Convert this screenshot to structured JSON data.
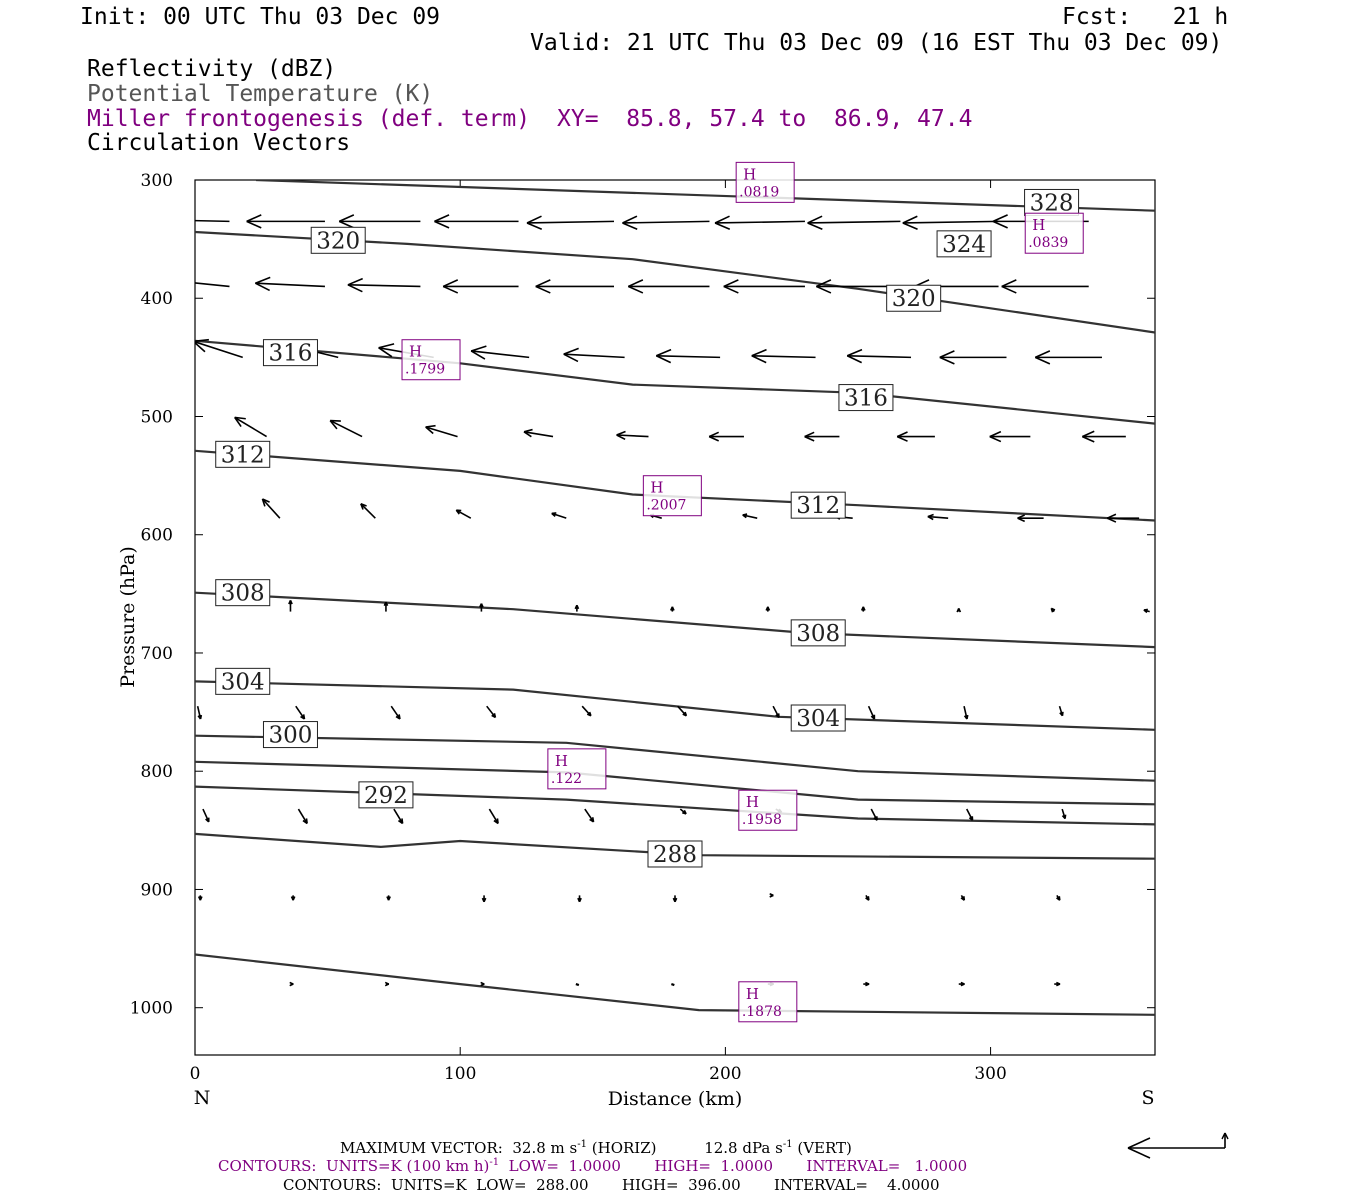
{
  "header": {
    "init": "Init: 00 UTC Thu 03 Dec 09",
    "fcst": "Fcst:   21 h",
    "valid": "Valid: 21 UTC Thu 03 Dec 09 (16 EST Thu 03 Dec 09)",
    "field1": "Reflectivity (dBZ)",
    "field2": "Potential Temperature (K)",
    "field3": "Miller frontogenesis (def. term)",
    "xy": "XY=  85.8, 57.4 to  86.9, 47.4",
    "field4": "Circulation Vectors"
  },
  "colors": {
    "frontogenesis": "#800080",
    "theta": "#333333",
    "vectors": "#000000"
  },
  "chart_data": {
    "type": "cross-section",
    "xlabel": "Distance (km)",
    "ylabel": "Pressure (hPa)",
    "xlim": [
      0,
      362
    ],
    "ylim": [
      300,
      1040
    ],
    "y_inverted": true,
    "xticks": [
      0,
      100,
      200,
      300
    ],
    "yticks": [
      300,
      400,
      500,
      600,
      700,
      800,
      900,
      1000
    ],
    "end_labels": {
      "left": "N",
      "right": "S"
    },
    "theta_contours": [
      {
        "level": "",
        "points": [
          [
            23,
            300
          ],
          [
            362,
            326
          ]
        ]
      },
      {
        "level": "",
        "points": [
          [
            0,
            344
          ],
          [
            80,
            354
          ],
          [
            165,
            367
          ],
          [
            250,
            392
          ],
          [
            362,
            429
          ]
        ]
      },
      {
        "level": "",
        "points": [
          [
            0,
            436
          ],
          [
            100,
            455
          ],
          [
            165,
            473
          ],
          [
            250,
            480
          ],
          [
            362,
            506
          ]
        ]
      },
      {
        "level": "",
        "points": [
          [
            0,
            529
          ],
          [
            100,
            546
          ],
          [
            165,
            566
          ],
          [
            250,
            575
          ],
          [
            362,
            588
          ]
        ]
      },
      {
        "level": "",
        "points": [
          [
            0,
            649
          ],
          [
            120,
            663
          ],
          [
            230,
            683
          ],
          [
            362,
            695
          ]
        ]
      },
      {
        "level": "",
        "points": [
          [
            0,
            724
          ],
          [
            120,
            731
          ],
          [
            220,
            754
          ],
          [
            362,
            765
          ]
        ]
      },
      {
        "level": "",
        "points": [
          [
            0,
            770
          ],
          [
            140,
            776
          ],
          [
            250,
            800
          ],
          [
            362,
            808
          ]
        ]
      },
      {
        "level": "",
        "points": [
          [
            0,
            792
          ],
          [
            140,
            801
          ],
          [
            250,
            824
          ],
          [
            362,
            828
          ]
        ]
      },
      {
        "level": "",
        "points": [
          [
            0,
            813
          ],
          [
            140,
            824
          ],
          [
            250,
            840
          ],
          [
            362,
            845
          ]
        ]
      },
      {
        "level": "",
        "points": [
          [
            0,
            853
          ],
          [
            70,
            864
          ],
          [
            100,
            859
          ],
          [
            190,
            871
          ],
          [
            362,
            874
          ]
        ]
      },
      {
        "level": "",
        "points": [
          [
            0,
            955
          ],
          [
            100,
            980
          ],
          [
            190,
            1002
          ],
          [
            362,
            1006
          ]
        ]
      }
    ],
    "theta_labels": [
      {
        "text": "328",
        "x": 323,
        "y": 319
      },
      {
        "text": "324",
        "x": 290,
        "y": 354
      },
      {
        "text": "320",
        "x": 54,
        "y": 351
      },
      {
        "text": "320",
        "x": 271,
        "y": 400
      },
      {
        "text": "316",
        "x": 36,
        "y": 446
      },
      {
        "text": "316",
        "x": 253,
        "y": 484
      },
      {
        "text": "312",
        "x": 18,
        "y": 532
      },
      {
        "text": "312",
        "x": 235,
        "y": 575
      },
      {
        "text": "308",
        "x": 18,
        "y": 649
      },
      {
        "text": "308",
        "x": 235,
        "y": 683
      },
      {
        "text": "304",
        "x": 18,
        "y": 724
      },
      {
        "text": "304",
        "x": 235,
        "y": 755
      },
      {
        "text": "300",
        "x": 36,
        "y": 769
      },
      {
        "text": "292",
        "x": 72,
        "y": 820
      },
      {
        "text": "288",
        "x": 181,
        "y": 870
      }
    ],
    "frontogenesis_maxima": [
      {
        "mark": "H",
        "value": ".0819",
        "x": 215,
        "y": 302
      },
      {
        "mark": "H",
        "value": ".0839",
        "x": 324,
        "y": 345
      },
      {
        "mark": "H",
        "value": ".1799",
        "x": 89,
        "y": 452
      },
      {
        "mark": "H",
        "value": ".2007",
        "x": 180,
        "y": 567
      },
      {
        "mark": "H",
        "value": ".122",
        "x": 144,
        "y": 798
      },
      {
        "mark": "H",
        "value": ".1958",
        "x": 216,
        "y": 833
      },
      {
        "mark": "H",
        "value": ".1878",
        "x": 216,
        "y": 995
      }
    ],
    "vectors": [
      {
        "p": 335,
        "x": [
          13,
          49,
          85,
          122,
          158,
          194,
          230,
          266,
          303,
          337
        ],
        "u": [
          -25,
          -27,
          -28,
          -29,
          -30,
          -30,
          -31,
          -32,
          -33,
          -33
        ],
        "w": [
          -1,
          0,
          0,
          0,
          1,
          1,
          1,
          1,
          1,
          0
        ]
      },
      {
        "p": 390,
        "x": [
          13,
          49,
          85,
          122,
          158,
          194,
          230,
          266,
          303,
          337
        ],
        "u": [
          -22,
          -24,
          -25,
          -26,
          -27,
          -28,
          -28,
          -29,
          -29,
          -30
        ],
        "w": [
          -4,
          -2,
          -1,
          0,
          0,
          0,
          0,
          0,
          0,
          0
        ]
      },
      {
        "p": 450,
        "x": [
          18,
          54,
          90,
          126,
          162,
          198,
          234,
          270,
          306,
          342
        ],
        "u": [
          -17,
          -18,
          -19,
          -20,
          -21,
          -22,
          -22,
          -22,
          -23,
          -23
        ],
        "w": [
          -10,
          -8,
          -6,
          -4,
          -2,
          -1,
          -1,
          -1,
          0,
          0
        ]
      },
      {
        "p": 517,
        "x": [
          27,
          63,
          99,
          135,
          171,
          207,
          243,
          279,
          315,
          351
        ],
        "u": [
          -11,
          -11,
          -11,
          -10,
          -11,
          -12,
          -12,
          -13,
          -14,
          -15
        ],
        "w": [
          -12,
          -10,
          -6,
          -3,
          -1,
          0,
          0,
          0,
          0,
          0
        ]
      },
      {
        "p": 586,
        "x": [
          32,
          68,
          104,
          140,
          176,
          212,
          248,
          284,
          320,
          356
        ],
        "u": [
          -6,
          -5,
          -5,
          -5,
          -4,
          -5,
          -6,
          -7,
          -9,
          -11
        ],
        "w": [
          -12,
          -9,
          -5,
          -3,
          -2,
          -2,
          -1,
          -1,
          0,
          0
        ]
      },
      {
        "p": 665,
        "x": [
          36,
          72,
          108,
          144,
          180,
          216,
          252,
          288,
          324,
          360
        ],
        "u": [
          0,
          0,
          0,
          0,
          0,
          0,
          0,
          0,
          -1,
          -2
        ],
        "w": [
          -7,
          -6,
          -5,
          -4,
          -3,
          -3,
          -3,
          -2,
          -2,
          -1
        ]
      },
      {
        "p": 745,
        "x": [
          1,
          38,
          74,
          110,
          146,
          182,
          218,
          254,
          290,
          326
        ],
        "u": [
          1,
          3,
          3,
          3,
          3,
          3,
          2,
          2,
          1,
          1
        ],
        "w": [
          8,
          8,
          8,
          7,
          6,
          6,
          7,
          8,
          8,
          6
        ]
      },
      {
        "p": 832,
        "x": [
          3,
          39,
          75,
          111,
          147,
          183,
          219,
          255,
          291,
          327
        ],
        "u": [
          2,
          3,
          3,
          3,
          3,
          2,
          2,
          2,
          2,
          1
        ],
        "w": [
          8,
          9,
          9,
          9,
          8,
          3,
          2,
          7,
          7,
          6
        ]
      },
      {
        "p": 905,
        "x": [
          2,
          37,
          73,
          109,
          145,
          181,
          217,
          253,
          289,
          325
        ],
        "u": [
          0,
          0,
          0,
          0,
          0,
          0,
          1,
          1,
          1,
          1
        ],
        "w": [
          3,
          3,
          3,
          4,
          4,
          4,
          0,
          3,
          3,
          3
        ]
      },
      {
        "p": 980,
        "x": [
          36,
          72,
          108,
          144,
          180,
          216,
          252,
          288,
          324
        ],
        "u": [
          1,
          1,
          1,
          0,
          0,
          2,
          2,
          2,
          2
        ],
        "w": [
          0,
          0,
          0,
          0,
          0,
          0,
          0,
          0,
          0
        ]
      }
    ]
  },
  "footer": {
    "maxvec_label": "MAXIMUM VECTOR:",
    "maxvec_horiz": "32.8 m s",
    "maxvec_horiz_exp": "-1",
    "maxvec_horiz_unit": "(HORIZ)",
    "maxvec_vert": "12.8 dPa s",
    "maxvec_vert_exp": "-1",
    "maxvec_vert_unit": "(VERT)",
    "contours1_a": "CONTOURS:  UNITS=K (100 km h)",
    "contours1_exp": "-1",
    "contours1_b": "  LOW=  1.0000",
    "contours1_c": "HIGH=  1.0000",
    "contours1_d": "INTERVAL=   1.0000",
    "contours2_a": "CONTOURS:  UNITS=K  LOW=  288.00",
    "contours2_b": "HIGH=  396.00",
    "contours2_c": "INTERVAL=    4.0000"
  }
}
